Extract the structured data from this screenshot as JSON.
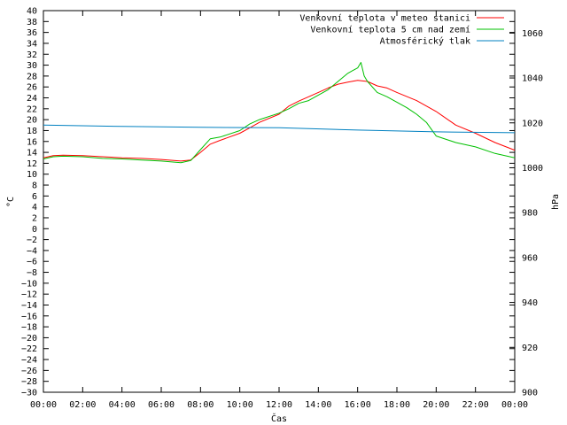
{
  "chart_data": {
    "type": "line",
    "xlabel": "Čas",
    "ylabel": "°C",
    "y2label": "hPa",
    "grid": false,
    "legend_position": "top-right",
    "x_range": [
      "00:00",
      "24:00"
    ],
    "x_ticks": [
      "00:00",
      "02:00",
      "04:00",
      "06:00",
      "08:00",
      "10:00",
      "12:00",
      "14:00",
      "16:00",
      "18:00",
      "20:00",
      "22:00",
      "00:00"
    ],
    "ylim": [
      -30,
      40
    ],
    "y_ticks": [
      -30,
      -28,
      -26,
      -24,
      -22,
      -20,
      -18,
      -16,
      -14,
      -12,
      -10,
      -8,
      -6,
      -4,
      -2,
      0,
      2,
      4,
      6,
      8,
      10,
      12,
      14,
      16,
      18,
      20,
      22,
      24,
      26,
      28,
      30,
      32,
      34,
      36,
      38,
      40
    ],
    "y2lim": [
      900,
      1070
    ],
    "y2_ticks": [
      900,
      920,
      940,
      960,
      980,
      1000,
      1020,
      1040,
      1060
    ],
    "series": [
      {
        "name": "Venkovní teplota v meteo stanici",
        "axis": "left",
        "color": "#ff0000",
        "x": [
          "00:00",
          "00:30",
          "01:00",
          "02:00",
          "03:00",
          "04:00",
          "05:00",
          "06:00",
          "07:00",
          "07:30",
          "08:00",
          "08:30",
          "09:00",
          "10:00",
          "10:30",
          "11:00",
          "12:00",
          "12:30",
          "13:00",
          "13:30",
          "14:00",
          "14:30",
          "15:00",
          "15:30",
          "16:00",
          "16:30",
          "17:00",
          "17:30",
          "18:00",
          "19:00",
          "20:00",
          "21:00",
          "22:00",
          "23:00",
          "24:00"
        ],
        "values": [
          13.0,
          13.4,
          13.5,
          13.4,
          13.2,
          13.0,
          12.9,
          12.7,
          12.4,
          12.6,
          14.0,
          15.5,
          16.2,
          17.5,
          18.5,
          19.5,
          21.0,
          22.5,
          23.4,
          24.2,
          25.0,
          25.8,
          26.5,
          26.9,
          27.2,
          27.0,
          26.2,
          25.8,
          25.0,
          23.5,
          21.5,
          19.0,
          17.5,
          15.8,
          14.4
        ]
      },
      {
        "name": "Venkovní teplota 5 cm nad zemí",
        "axis": "left",
        "color": "#00c000",
        "x": [
          "00:00",
          "00:30",
          "01:00",
          "02:00",
          "03:00",
          "04:00",
          "05:00",
          "06:00",
          "07:00",
          "07:30",
          "08:00",
          "08:30",
          "09:00",
          "10:00",
          "10:30",
          "11:00",
          "12:00",
          "12:30",
          "13:00",
          "13:30",
          "14:00",
          "14:30",
          "15:00",
          "15:30",
          "15:45",
          "16:00",
          "16:10",
          "16:20",
          "16:30",
          "17:00",
          "17:30",
          "18:00",
          "18:30",
          "19:00",
          "19:30",
          "20:00",
          "21:00",
          "22:00",
          "23:00",
          "24:00"
        ],
        "values": [
          12.8,
          13.2,
          13.3,
          13.2,
          12.9,
          12.8,
          12.6,
          12.4,
          12.1,
          12.5,
          14.5,
          16.5,
          16.8,
          18.0,
          19.2,
          20.0,
          21.2,
          22.0,
          23.0,
          23.5,
          24.5,
          25.5,
          27.0,
          28.5,
          29.0,
          29.5,
          30.5,
          28.0,
          27.0,
          25.0,
          24.2,
          23.2,
          22.2,
          21.0,
          19.5,
          17.0,
          15.8,
          15.0,
          13.8,
          13.0
        ]
      },
      {
        "name": "Atmosférický tlak",
        "axis": "right",
        "color": "#0080c0",
        "x": [
          "00:00",
          "04:00",
          "08:00",
          "12:00",
          "16:00",
          "20:00",
          "24:00"
        ],
        "values": [
          1019.0,
          1018.4,
          1018.0,
          1017.8,
          1016.8,
          1016.0,
          1015.6
        ]
      }
    ]
  }
}
